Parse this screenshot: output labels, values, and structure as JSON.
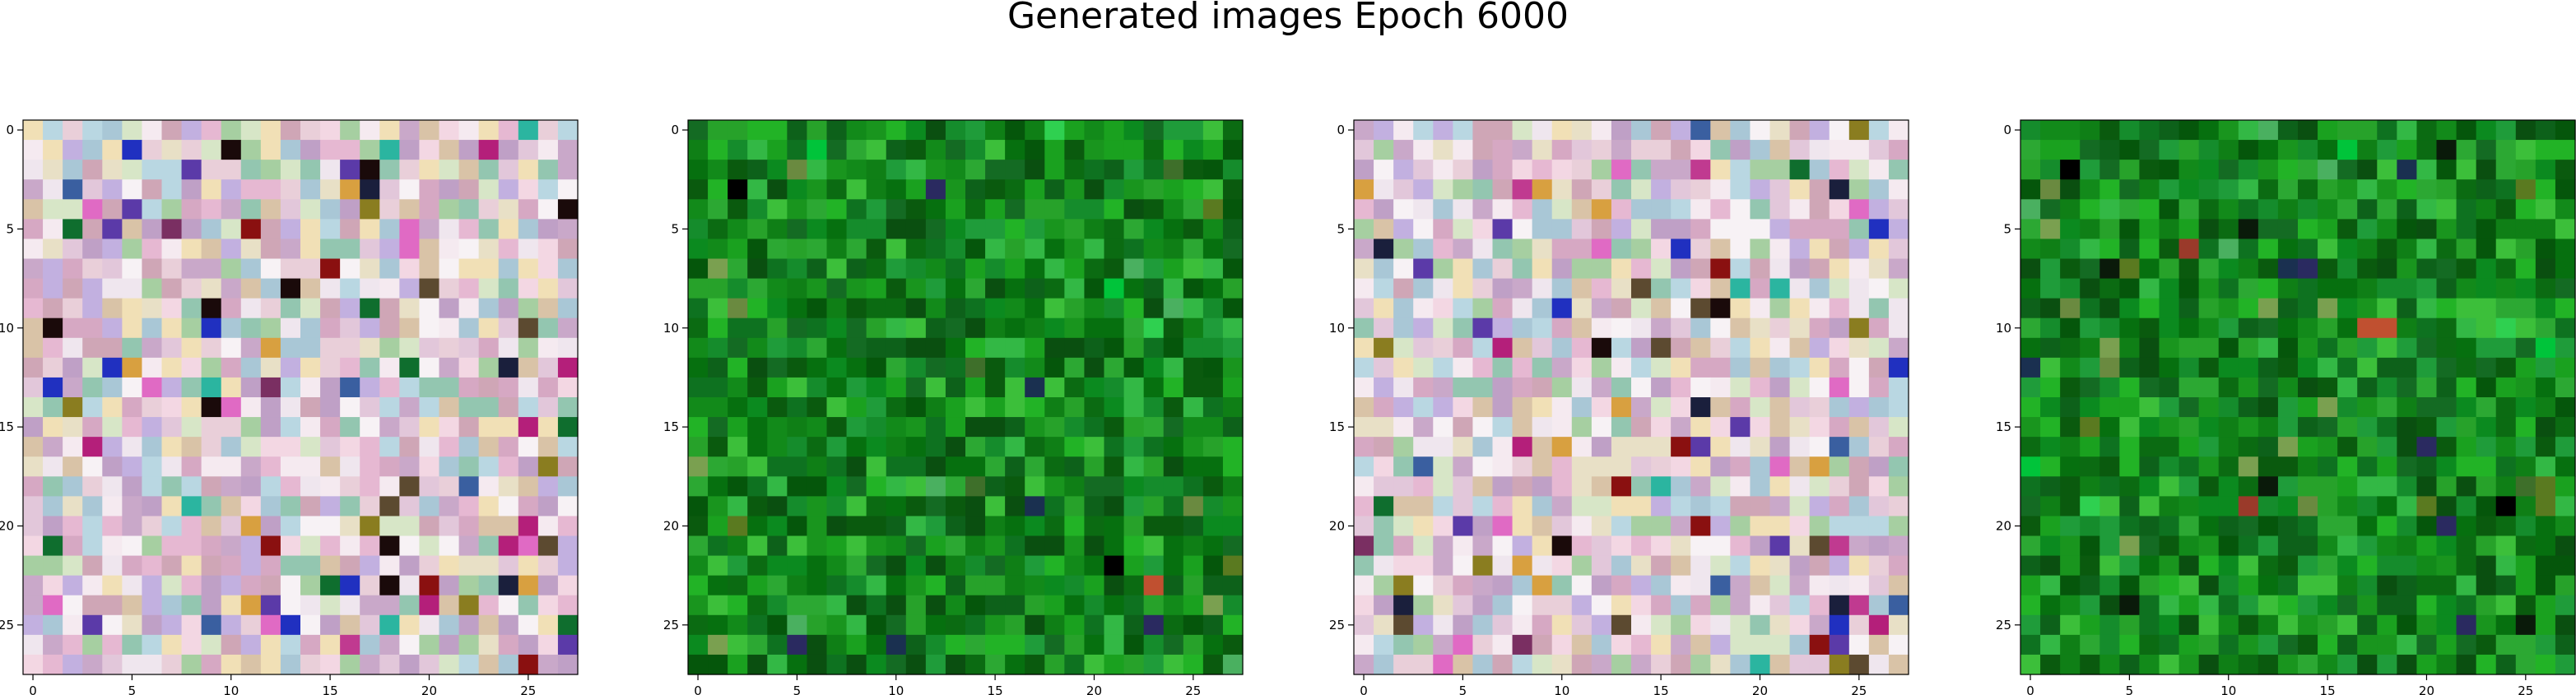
{
  "title": "Generated images Epoch 6000",
  "chart_data": [
    {
      "type": "heatmap",
      "description_palette": "pastel",
      "shape": [
        28,
        28
      ],
      "xlim": [
        -0.5,
        27.5
      ],
      "ylim": [
        27.5,
        -0.5
      ],
      "xticks": [
        0,
        5,
        10,
        15,
        20,
        25
      ],
      "yticks": [
        0,
        5,
        10,
        15,
        20,
        25
      ],
      "tick_labels": [
        "0",
        "5",
        "10",
        "15",
        "20",
        "25"
      ],
      "colormap": "rgb",
      "grid": false
    },
    {
      "type": "heatmap",
      "description_palette": "green",
      "shape": [
        28,
        28
      ],
      "xlim": [
        -0.5,
        27.5
      ],
      "ylim": [
        27.5,
        -0.5
      ],
      "xticks": [
        0,
        5,
        10,
        15,
        20,
        25
      ],
      "yticks": [
        0,
        5,
        10,
        15,
        20,
        25
      ],
      "tick_labels": [
        "0",
        "5",
        "10",
        "15",
        "20",
        "25"
      ],
      "colormap": "rgb",
      "grid": false
    },
    {
      "type": "heatmap",
      "description_palette": "pastel",
      "shape": [
        28,
        28
      ],
      "xlim": [
        -0.5,
        27.5
      ],
      "ylim": [
        27.5,
        -0.5
      ],
      "xticks": [
        0,
        5,
        10,
        15,
        20,
        25
      ],
      "yticks": [
        0,
        5,
        10,
        15,
        20,
        25
      ],
      "tick_labels": [
        "0",
        "5",
        "10",
        "15",
        "20",
        "25"
      ],
      "colormap": "rgb",
      "grid": false
    },
    {
      "type": "heatmap",
      "description_palette": "green",
      "shape": [
        28,
        28
      ],
      "xlim": [
        -0.5,
        27.5
      ],
      "ylim": [
        27.5,
        -0.5
      ],
      "xticks": [
        0,
        5,
        10,
        15,
        20,
        25
      ],
      "yticks": [
        0,
        5,
        10,
        15,
        20,
        25
      ],
      "tick_labels": [
        "0",
        "5",
        "10",
        "15",
        "20",
        "25"
      ],
      "colormap": "rgb",
      "grid": false
    }
  ],
  "palettes": {
    "pastel": [
      "#f3d7e3",
      "#e2c7da",
      "#c9a8c9",
      "#efe6ee",
      "#d7e6c7",
      "#b9d7e2",
      "#e6b8d2",
      "#f7f2f5",
      "#d9c3a7",
      "#a6cfa1",
      "#c2b0e0",
      "#f1e0b6",
      "#d6a8c3",
      "#a9c7d6",
      "#e9cfd9",
      "#bfa0c6",
      "#93c6b0",
      "#cfa6b6",
      "#e8e0c6",
      "#f5eaf0"
    ],
    "pastel_accents": [
      "#7a2f62",
      "#5b3aa8",
      "#1a1f3c",
      "#b41f7a",
      "#8a7d20",
      "#2bb5a0",
      "#e06ac4",
      "#3a5fa0",
      "#8a1010",
      "#0f6e2e",
      "#d8a040",
      "#5c4a30",
      "#1a0a0a",
      "#c03a90",
      "#2030c0"
    ],
    "green": [
      "#0b6b12",
      "#128a1a",
      "#1aa11f",
      "#0a5a0e",
      "#06700f",
      "#22b326",
      "#0f7f16",
      "#19951e",
      "#2ca833",
      "#0d611a",
      "#158c2c",
      "#0a4f10",
      "#1f9c3a",
      "#33b845",
      "#0e7220",
      "#05560b",
      "#27a22a",
      "#3cbf3a",
      "#0b8a1f",
      "#146b23"
    ],
    "green_accents": [
      "#000000",
      "#0a1a0a",
      "#3e6f2a",
      "#6a8a40",
      "#9a3a2a",
      "#c05030",
      "#7aa050",
      "#1a3050",
      "#2a2a60",
      "#5a7a20",
      "#00c43a",
      "#2fd050",
      "#4ab060"
    ]
  }
}
